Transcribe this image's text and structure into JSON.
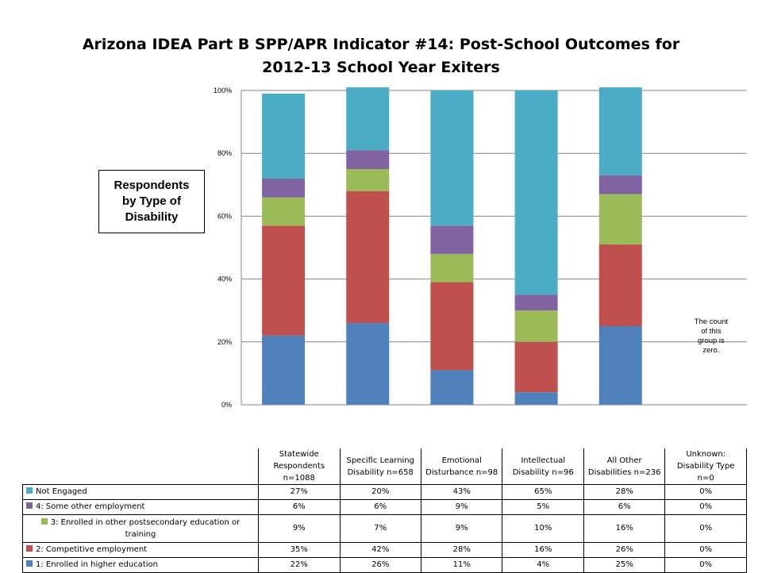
{
  "title": {
    "line1": "Arizona IDEA Part B SPP/APR Indicator #14: Post-School Outcomes for",
    "line2": "2012-13 School Year Exiters"
  },
  "side_label": {
    "line1": "Respondents",
    "line2": "by Type of",
    "line3": "Disability"
  },
  "zero_note": [
    "The count",
    "of this",
    "group is",
    "zero."
  ],
  "chart_data": {
    "type": "bar",
    "stacked": true,
    "percent": true,
    "ylim": [
      0,
      100
    ],
    "yticks": [
      "0%",
      "20%",
      "40%",
      "60%",
      "80%",
      "100%"
    ],
    "grid": true,
    "categories": [
      [
        "Statewide",
        "Respondents",
        "n=1088"
      ],
      [
        "Specific Learning",
        "Disability n=658"
      ],
      [
        "Emotional",
        "Disturbance n=98"
      ],
      [
        "Intellectual",
        "Disability n=96"
      ],
      [
        "All Other",
        "Disabilities n=236"
      ],
      [
        "Unknown:",
        "Disability Type",
        "n=0"
      ]
    ],
    "series": [
      {
        "name": "1: Enrolled in higher education",
        "color": "#4f81bd",
        "values": [
          22,
          26,
          11,
          4,
          25,
          0
        ],
        "labels": [
          "22%",
          "26%",
          "11%",
          "4%",
          "25%",
          "0%"
        ]
      },
      {
        "name": "2: Competitive employment",
        "color": "#c0504d",
        "values": [
          35,
          42,
          28,
          16,
          26,
          0
        ],
        "labels": [
          "35%",
          "42%",
          "28%",
          "16%",
          "26%",
          "0%"
        ]
      },
      {
        "name": "3: Enrolled in other postsecondary education or training",
        "color": "#9bbb59",
        "values": [
          9,
          7,
          9,
          10,
          16,
          0
        ],
        "labels": [
          "9%",
          "7%",
          "9%",
          "10%",
          "16%",
          "0%"
        ]
      },
      {
        "name": "4: Some other employment",
        "color": "#8064a2",
        "values": [
          6,
          6,
          9,
          5,
          6,
          0
        ],
        "labels": [
          "6%",
          "6%",
          "9%",
          "5%",
          "6%",
          "0%"
        ]
      },
      {
        "name": "Not Engaged",
        "color": "#4bacc6",
        "values": [
          27,
          20,
          43,
          65,
          28,
          0
        ],
        "labels": [
          "27%",
          "20%",
          "43%",
          "65%",
          "28%",
          "0%"
        ]
      }
    ]
  }
}
